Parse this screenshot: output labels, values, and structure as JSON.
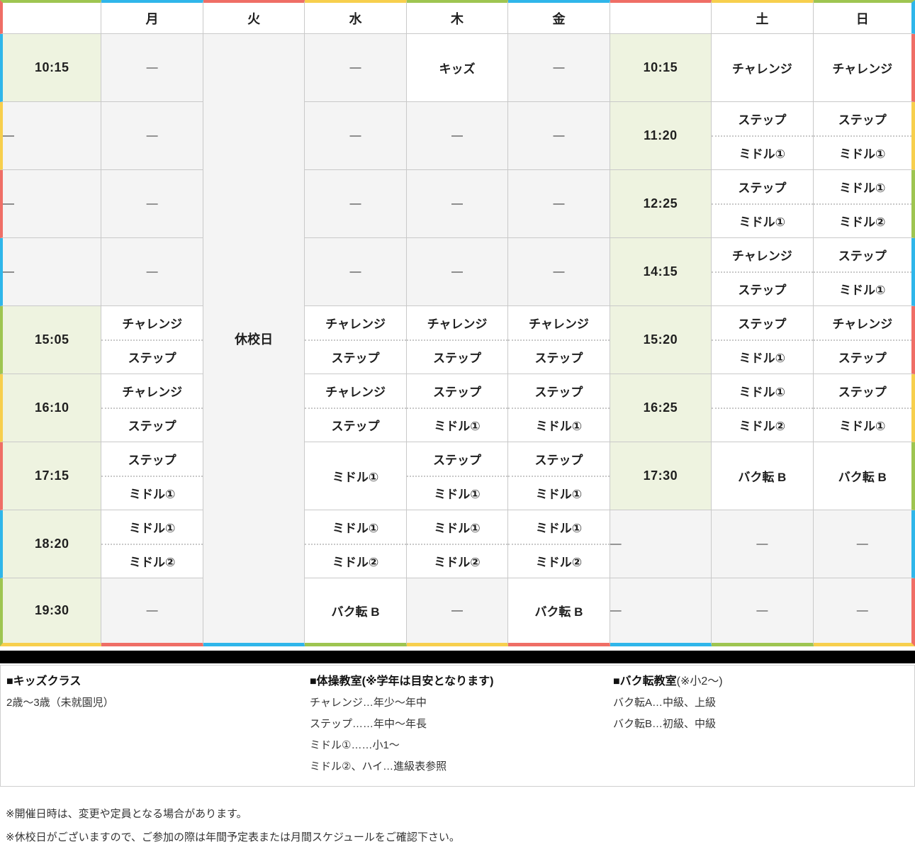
{
  "accent_colors": {
    "green": "#9ec551",
    "blue": "#2fb6ea",
    "red": "#ef6e66",
    "yellow": "#f7cf4d"
  },
  "table": {
    "day_headers": [
      "",
      "月",
      "火",
      "水",
      "木",
      "金",
      "",
      "土",
      "日"
    ],
    "closed_label": "休校日",
    "dash": "—",
    "top_border_colors": [
      "green",
      "blue",
      "red",
      "yellow",
      "green",
      "blue",
      "red",
      "yellow",
      "green"
    ],
    "bottom_border_colors": [
      "yellow",
      "red",
      "blue",
      "green",
      "yellow",
      "red",
      "blue",
      "green",
      "yellow"
    ],
    "left_border_colors": [
      "red",
      "blue",
      "yellow",
      "red",
      "blue",
      "green",
      "yellow",
      "red",
      "blue",
      "green"
    ],
    "right_border_colors": [
      "blue",
      "red",
      "yellow",
      "green",
      "blue",
      "red",
      "yellow",
      "green",
      "blue",
      "red"
    ],
    "rows": [
      {
        "time_left": "10:15",
        "mon": [
          "—"
        ],
        "wed": [
          "—"
        ],
        "thu": [
          "キッズ"
        ],
        "fri": [
          "—"
        ],
        "time_right": "10:15",
        "sat": [
          "チャレンジ"
        ],
        "sun": [
          "チャレンジ"
        ]
      },
      {
        "time_left": "—",
        "mon": [
          "—"
        ],
        "wed": [
          "—"
        ],
        "thu": [
          "—"
        ],
        "fri": [
          "—"
        ],
        "time_right": "11:20",
        "sat": [
          "ステップ",
          "ミドル①"
        ],
        "sun": [
          "ステップ",
          "ミドル①"
        ]
      },
      {
        "time_left": "—",
        "mon": [
          "—"
        ],
        "wed": [
          "—"
        ],
        "thu": [
          "—"
        ],
        "fri": [
          "—"
        ],
        "time_right": "12:25",
        "sat": [
          "ステップ",
          "ミドル①"
        ],
        "sun": [
          "ミドル①",
          "ミドル②"
        ]
      },
      {
        "time_left": "—",
        "mon": [
          "—"
        ],
        "wed": [
          "—"
        ],
        "thu": [
          "—"
        ],
        "fri": [
          "—"
        ],
        "time_right": "14:15",
        "sat": [
          "チャレンジ",
          "ステップ"
        ],
        "sun": [
          "ステップ",
          "ミドル①"
        ]
      },
      {
        "time_left": "15:05",
        "mon": [
          "チャレンジ",
          "ステップ"
        ],
        "wed": [
          "チャレンジ",
          "ステップ"
        ],
        "thu": [
          "チャレンジ",
          "ステップ"
        ],
        "fri": [
          "チャレンジ",
          "ステップ"
        ],
        "time_right": "15:20",
        "sat": [
          "ステップ",
          "ミドル①"
        ],
        "sun": [
          "チャレンジ",
          "ステップ"
        ]
      },
      {
        "time_left": "16:10",
        "mon": [
          "チャレンジ",
          "ステップ"
        ],
        "wed": [
          "チャレンジ",
          "ステップ"
        ],
        "thu": [
          "ステップ",
          "ミドル①"
        ],
        "fri": [
          "ステップ",
          "ミドル①"
        ],
        "time_right": "16:25",
        "sat": [
          "ミドル①",
          "ミドル②"
        ],
        "sun": [
          "ステップ",
          "ミドル①"
        ]
      },
      {
        "time_left": "17:15",
        "mon": [
          "ステップ",
          "ミドル①"
        ],
        "wed": [
          "ミドル①"
        ],
        "thu": [
          "ステップ",
          "ミドル①"
        ],
        "fri": [
          "ステップ",
          "ミドル①"
        ],
        "time_right": "17:30",
        "sat": [
          "バク転 B"
        ],
        "sun": [
          "バク転 B"
        ]
      },
      {
        "time_left": "18:20",
        "mon": [
          "ミドル①",
          "ミドル②"
        ],
        "wed": [
          "ミドル①",
          "ミドル②"
        ],
        "thu": [
          "ミドル①",
          "ミドル②"
        ],
        "fri": [
          "ミドル①",
          "ミドル②"
        ],
        "time_right": "—",
        "sat": [
          "—"
        ],
        "sun": [
          "—"
        ]
      },
      {
        "time_left": "19:30",
        "mon": [
          "—"
        ],
        "wed": [
          "バク転 B"
        ],
        "thu": [
          "—"
        ],
        "fri": [
          "バク転 B"
        ],
        "time_right": "—",
        "sat": [
          "—"
        ],
        "sun": [
          "—"
        ]
      }
    ]
  },
  "legend": {
    "sections": [
      {
        "title": "■キッズクラス",
        "suffix": "",
        "lines": [
          "2歳〜3歳（未就園児）"
        ]
      },
      {
        "title": "■体操教室(※学年は目安となります)",
        "suffix": "",
        "lines": [
          "チャレンジ…年少〜年中",
          "ステップ……年中〜年長",
          "ミドル①……小1〜",
          "ミドル②、ハイ…進級表参照"
        ]
      },
      {
        "title": "■バク転教室",
        "suffix": "(※小2〜)",
        "lines": [
          "バク転A…中級、上級",
          "バク転B…初級、中級"
        ]
      }
    ]
  },
  "notes": [
    "※開催日時は、変更や定員となる場合があります。",
    "※休校日がございますので、ご参加の際は年間予定表または月間スケジュールをご確認下さい。"
  ]
}
